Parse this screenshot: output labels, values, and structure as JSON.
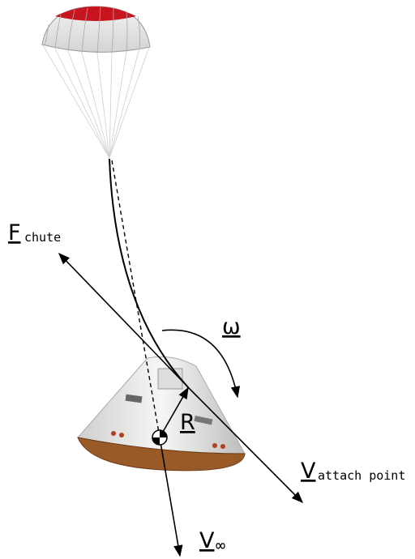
{
  "labels": {
    "chute_force": {
      "symbol": "F",
      "subscript": "chute"
    },
    "angular_rate": {
      "symbol": "ω"
    },
    "radius": {
      "symbol": "R"
    },
    "attach_velocity": {
      "symbol": "V",
      "subscript": "attach point"
    },
    "free_stream_velocity": {
      "symbol": "V",
      "subscript": "∞"
    }
  }
}
